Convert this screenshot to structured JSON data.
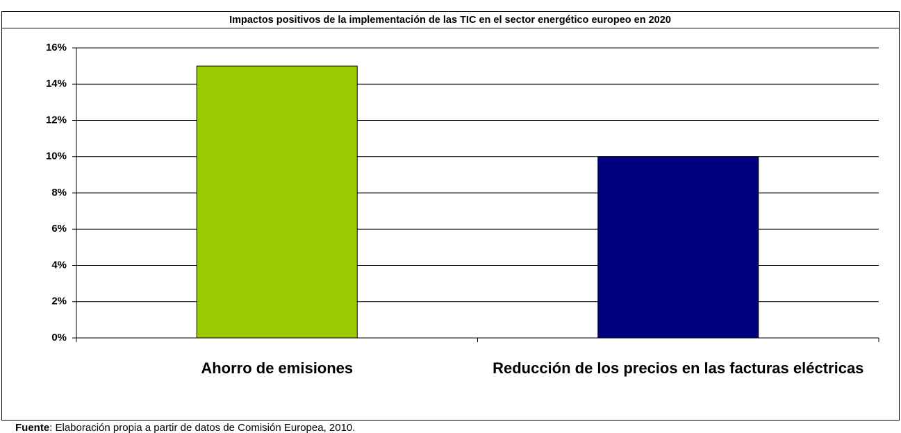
{
  "chart_data": {
    "type": "bar",
    "title": "Impactos positivos de la implementación de las TIC en el sector energético europeo en 2020",
    "categories": [
      "Ahorro de emisiones",
      "Reducción de los precios en las facturas eléctricas"
    ],
    "values": [
      15,
      10
    ],
    "colors": [
      "#99cc00",
      "#000080"
    ],
    "ylim": [
      0,
      16
    ],
    "yticks": [
      {
        "value": 0,
        "label": "0%"
      },
      {
        "value": 2,
        "label": "2%"
      },
      {
        "value": 4,
        "label": "4%"
      },
      {
        "value": 6,
        "label": "6%"
      },
      {
        "value": 8,
        "label": "8%"
      },
      {
        "value": 10,
        "label": "10%"
      },
      {
        "value": 12,
        "label": "12%"
      },
      {
        "value": 14,
        "label": "14%"
      },
      {
        "value": 16,
        "label": "16%"
      }
    ],
    "grid": true,
    "source_label": "Fuente",
    "source_text": ": Elaboración propia a partir de datos de Comisión Europea, 2010."
  }
}
